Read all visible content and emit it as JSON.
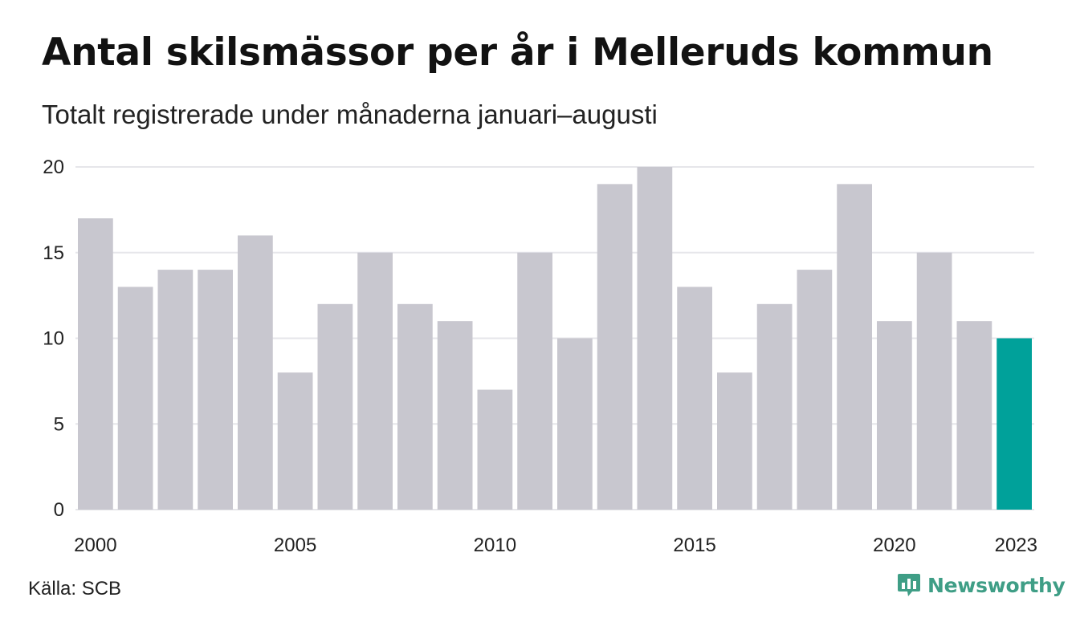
{
  "title": "Antal skilsmässor per år i Melleruds kommun",
  "subtitle": "Totalt registrerade under månaderna januari–augusti",
  "source": "Källa: SCB",
  "brand": "Newsworthy",
  "colors": {
    "bar": "#c8c7cf",
    "highlight": "#00a19a",
    "grid": "#e6e6ea",
    "brand": "#3f9e86"
  },
  "chart_data": {
    "type": "bar",
    "categories": [
      "2000",
      "2001",
      "2002",
      "2003",
      "2004",
      "2005",
      "2006",
      "2007",
      "2008",
      "2009",
      "2010",
      "2011",
      "2012",
      "2013",
      "2014",
      "2015",
      "2016",
      "2017",
      "2018",
      "2019",
      "2020",
      "2021",
      "2022",
      "2023"
    ],
    "values": [
      17,
      13,
      14,
      14,
      16,
      8,
      12,
      15,
      12,
      11,
      7,
      15,
      10,
      19,
      20,
      13,
      8,
      12,
      14,
      19,
      11,
      15,
      11,
      10
    ],
    "x_tick_labels": [
      "2000",
      "2005",
      "2010",
      "2015",
      "2020",
      "2023"
    ],
    "y_ticks": [
      0,
      5,
      10,
      15,
      20
    ],
    "ylim": [
      0,
      20
    ],
    "highlight_category": "2023",
    "grid": true,
    "title": "Antal skilsmässor per år i Melleruds kommun",
    "subtitle": "Totalt registrerade under månaderna januari–augusti"
  }
}
